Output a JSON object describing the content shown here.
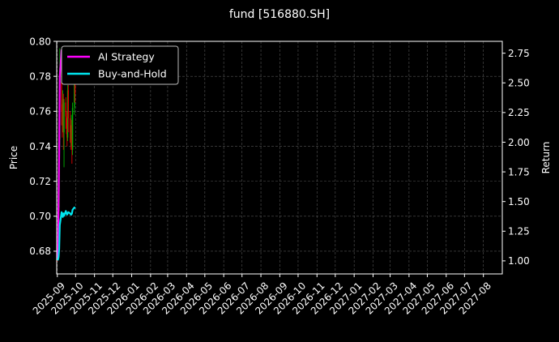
{
  "chart_data": {
    "type": "line",
    "title": "fund [516880.SH]",
    "ylabel_left": "Price",
    "ylabel_right": "Return",
    "ylim_left": [
      0.667,
      0.8
    ],
    "ylim_right": [
      0.89,
      2.85
    ],
    "yticks_left": [
      0.68,
      0.7,
      0.72,
      0.74,
      0.76,
      0.78,
      0.8
    ],
    "yticks_right": [
      1.0,
      1.25,
      1.5,
      1.75,
      2.0,
      2.25,
      2.5,
      2.75
    ],
    "yticks_left_labels": [
      "0.68",
      "0.70",
      "0.72",
      "0.74",
      "0.76",
      "0.78",
      "0.80"
    ],
    "yticks_right_labels": [
      "1.00",
      "1.25",
      "1.50",
      "1.75",
      "2.00",
      "2.25",
      "2.50",
      "2.75"
    ],
    "xticks": [
      "2025-09",
      "2025-10",
      "2025-11",
      "2025-12",
      "2026-01",
      "2026-02",
      "2026-03",
      "2026-04",
      "2026-05",
      "2026-06",
      "2026-07",
      "2026-08",
      "2026-09",
      "2026-10",
      "2026-11",
      "2026-12",
      "2027-01",
      "2027-02",
      "2027-03",
      "2027-04",
      "2027-05",
      "2027-06",
      "2027-07",
      "2027-08"
    ],
    "xlim": [
      "2025-08-31",
      "2027-09-01"
    ],
    "grid": true,
    "legend_position": "top-left",
    "colors": {
      "ai": "#ff00ff",
      "bh": "#00e5ee",
      "up": "#00b000",
      "down": "#dd0000"
    },
    "series": [
      {
        "name": "AI Strategy",
        "axis": "right",
        "x": [
          "2025-09-01",
          "2025-09-02",
          "2025-09-03",
          "2025-09-04",
          "2025-09-05",
          "2025-09-08"
        ],
        "y": [
          1.01,
          1.02,
          1.45,
          1.9,
          2.55,
          2.78
        ]
      },
      {
        "name": "Buy-and-Hold",
        "axis": "right",
        "x": [
          "2025-09-01",
          "2025-09-02",
          "2025-09-03",
          "2025-09-04",
          "2025-09-05",
          "2025-09-08",
          "2025-09-09",
          "2025-09-10",
          "2025-09-11",
          "2025-09-12",
          "2025-09-15",
          "2025-09-16",
          "2025-09-17",
          "2025-09-18",
          "2025-09-19",
          "2025-09-22",
          "2025-09-23",
          "2025-09-24",
          "2025-09-25",
          "2025-09-26",
          "2025-09-29",
          "2025-09-30"
        ],
        "y": [
          1.02,
          1.01,
          1.03,
          1.1,
          1.3,
          1.41,
          1.4,
          1.37,
          1.4,
          1.38,
          1.42,
          1.4,
          1.39,
          1.4,
          1.41,
          1.4,
          1.39,
          1.39,
          1.4,
          1.43,
          1.45,
          1.44
        ]
      }
    ],
    "candles": [
      {
        "date": "2025-09-01",
        "open": 0.678,
        "close": 0.676,
        "high": 0.682,
        "low": 0.674
      },
      {
        "date": "2025-09-02",
        "open": 0.676,
        "close": 0.684,
        "high": 0.688,
        "low": 0.675
      },
      {
        "date": "2025-09-03",
        "open": 0.685,
        "close": 0.705,
        "high": 0.712,
        "low": 0.683
      },
      {
        "date": "2025-09-04",
        "open": 0.705,
        "close": 0.742,
        "high": 0.752,
        "low": 0.703
      },
      {
        "date": "2025-09-05",
        "open": 0.744,
        "close": 0.785,
        "high": 0.796,
        "low": 0.74
      },
      {
        "date": "2025-09-08",
        "open": 0.785,
        "close": 0.76,
        "high": 0.79,
        "low": 0.752
      },
      {
        "date": "2025-09-09",
        "open": 0.76,
        "close": 0.752,
        "high": 0.764,
        "low": 0.745
      },
      {
        "date": "2025-09-10",
        "open": 0.752,
        "close": 0.767,
        "high": 0.772,
        "low": 0.748
      },
      {
        "date": "2025-09-11",
        "open": 0.767,
        "close": 0.748,
        "high": 0.77,
        "low": 0.738
      },
      {
        "date": "2025-09-12",
        "open": 0.748,
        "close": 0.765,
        "high": 0.767,
        "low": 0.728
      },
      {
        "date": "2025-09-15",
        "open": 0.765,
        "close": 0.757,
        "high": 0.768,
        "low": 0.75
      },
      {
        "date": "2025-09-16",
        "open": 0.757,
        "close": 0.752,
        "high": 0.76,
        "low": 0.747
      },
      {
        "date": "2025-09-17",
        "open": 0.752,
        "close": 0.745,
        "high": 0.756,
        "low": 0.74
      },
      {
        "date": "2025-09-18",
        "open": 0.745,
        "close": 0.772,
        "high": 0.775,
        "low": 0.743
      },
      {
        "date": "2025-09-19",
        "open": 0.772,
        "close": 0.756,
        "high": 0.775,
        "low": 0.748
      },
      {
        "date": "2025-09-22",
        "open": 0.756,
        "close": 0.748,
        "high": 0.76,
        "low": 0.742
      },
      {
        "date": "2025-09-23",
        "open": 0.748,
        "close": 0.744,
        "high": 0.752,
        "low": 0.738
      },
      {
        "date": "2025-09-24",
        "open": 0.744,
        "close": 0.752,
        "high": 0.758,
        "low": 0.74
      },
      {
        "date": "2025-09-25",
        "open": 0.752,
        "close": 0.738,
        "high": 0.755,
        "low": 0.73
      },
      {
        "date": "2025-09-26",
        "open": 0.738,
        "close": 0.762,
        "high": 0.765,
        "low": 0.735
      },
      {
        "date": "2025-09-29",
        "open": 0.762,
        "close": 0.776,
        "high": 0.78,
        "low": 0.758
      },
      {
        "date": "2025-09-30",
        "open": 0.776,
        "close": 0.77,
        "high": 0.779,
        "low": 0.765
      }
    ]
  }
}
